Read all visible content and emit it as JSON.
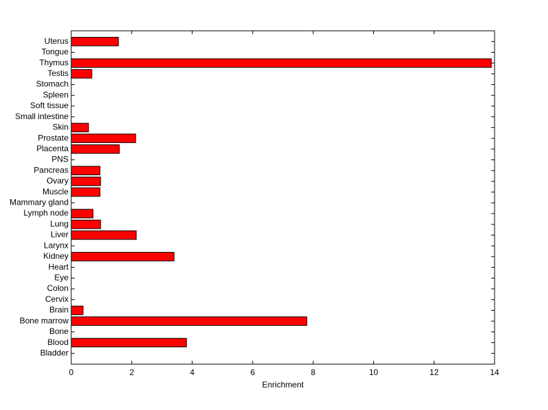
{
  "chart_data": {
    "type": "barh",
    "x_label": "Enrichment",
    "categories": [
      "Bladder",
      "Blood",
      "Bone",
      "Bone marrow",
      "Brain",
      "Cervix",
      "Colon",
      "Eye",
      "Heart",
      "Kidney",
      "Larynx",
      "Liver",
      "Lung",
      "Lymph node",
      "Mammary gland",
      "Muscle",
      "Ovary",
      "Pancreas",
      "PNS",
      "Placenta",
      "Prostate",
      "Skin",
      "Small intestine",
      "Soft tissue",
      "Spleen",
      "Stomach",
      "Testis",
      "Thymus",
      "Tongue",
      "Uterus"
    ],
    "values": [
      0,
      3.81,
      0,
      7.79,
      0.39,
      0,
      0,
      0,
      0,
      3.4,
      0,
      2.15,
      0.97,
      0.72,
      0,
      0.95,
      0.97,
      0.95,
      0,
      1.59,
      2.13,
      0.57,
      0,
      0,
      0,
      0,
      0.68,
      13.89,
      0,
      1.56
    ],
    "color": "#ff0000",
    "xlim": [
      0,
      14
    ],
    "xticks": [
      0,
      2,
      4,
      6,
      8,
      10,
      12,
      14
    ]
  }
}
